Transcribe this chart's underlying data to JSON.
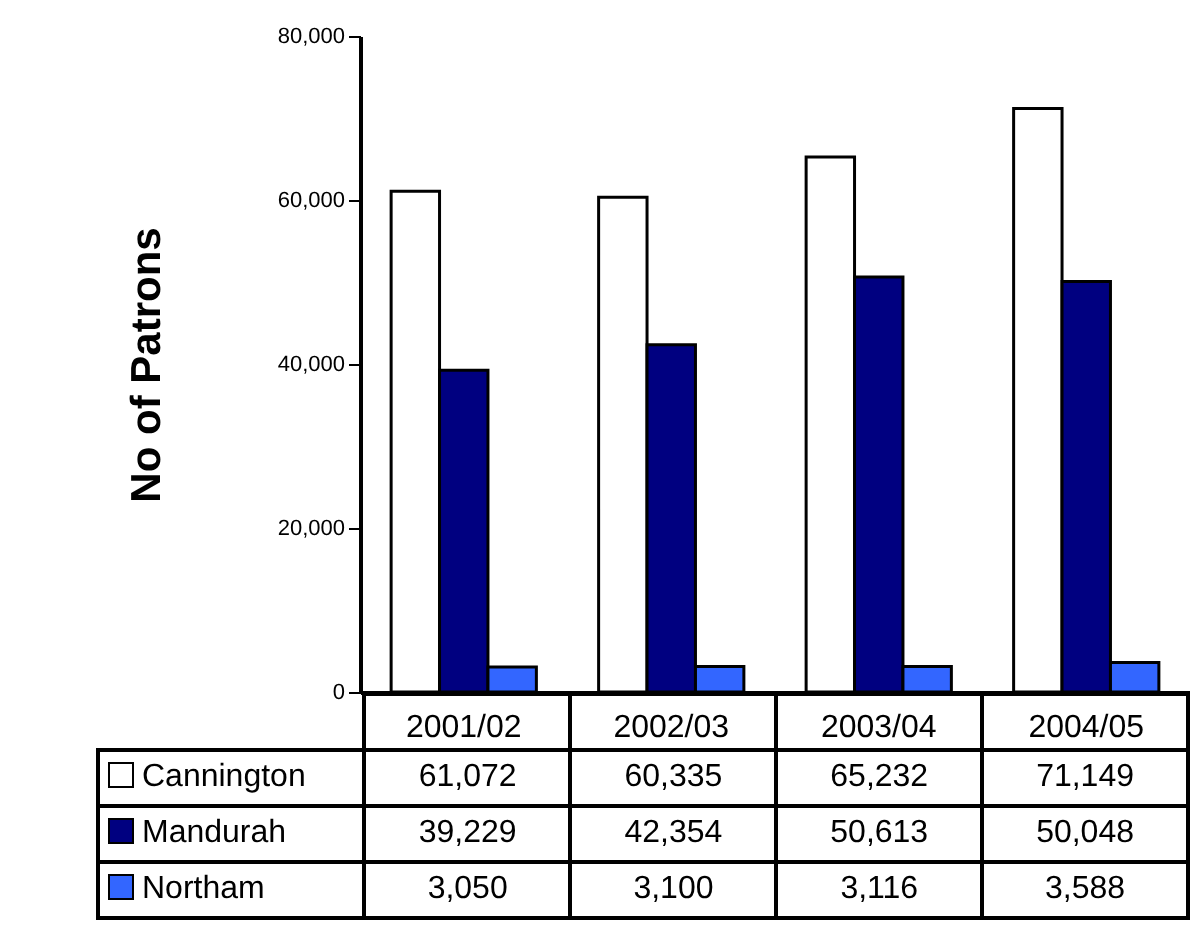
{
  "chart_data": {
    "type": "bar",
    "ylabel": "No of Patrons",
    "categories": [
      "2001/02",
      "2002/03",
      "2003/04",
      "2004/05"
    ],
    "series": [
      {
        "name": "Cannington",
        "color": "#ffffff",
        "values": [
          61072,
          60335,
          65232,
          71149
        ],
        "value_labels": [
          "61,072",
          "60,335",
          "65,232",
          "71,149"
        ]
      },
      {
        "name": "Mandurah",
        "color": "#000080",
        "values": [
          39229,
          42354,
          50613,
          50048
        ],
        "value_labels": [
          "39,229",
          "42,354",
          "50,613",
          "50,048"
        ]
      },
      {
        "name": "Northam",
        "color": "#3366ff",
        "values": [
          3050,
          3100,
          3116,
          3588
        ],
        "value_labels": [
          "3,050",
          "3,100",
          "3,116",
          "3,588"
        ]
      }
    ],
    "ylim": [
      0,
      80000
    ],
    "yticks": [
      {
        "value": 0,
        "label": "0"
      },
      {
        "value": 20000,
        "label": "20,000"
      },
      {
        "value": 40000,
        "label": "40,000"
      },
      {
        "value": 60000,
        "label": "60,000"
      },
      {
        "value": 80000,
        "label": "80,000"
      }
    ],
    "legend": "bottom",
    "grid": false
  }
}
